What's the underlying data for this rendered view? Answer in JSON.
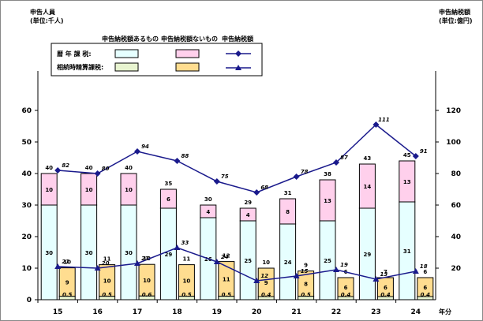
{
  "chart_data": {
    "type": "bar",
    "left_axis_label_line1": "申告人員",
    "left_axis_label_line2": "(単位:千人)",
    "right_axis_label_line1": "申告納税額",
    "right_axis_label_line2": "(単位:億円)",
    "x_unit_label": "年分",
    "categories": [
      "15",
      "16",
      "17",
      "18",
      "19",
      "20",
      "21",
      "22",
      "23",
      "24"
    ],
    "left_ylim": [
      0,
      70
    ],
    "left_ticks": [
      "0",
      "10",
      "20",
      "30",
      "40",
      "50",
      "60"
    ],
    "right_ylim": [
      0,
      140
    ],
    "right_ticks": [
      "20",
      "40",
      "60",
      "80",
      "100",
      "120"
    ],
    "legend": {
      "col1": "申告納税額あるもの",
      "col2": "申告納税額ないもの",
      "col3": "申告納税額",
      "row1": "暦 年 課 税:",
      "row2": "相続時精算課税:"
    },
    "rekinen": {
      "with_tax": [
        30,
        30,
        30,
        29,
        26,
        25,
        24,
        25,
        29,
        31
      ],
      "without_tax": [
        10,
        10,
        10,
        6,
        4,
        4,
        8,
        13,
        14,
        13
      ],
      "total": [
        40,
        40,
        40,
        35,
        30,
        29,
        31,
        38,
        43,
        45
      ],
      "tax_amount": [
        82,
        80,
        94,
        88,
        75,
        68,
        78,
        87,
        111,
        91
      ]
    },
    "souzokuji": {
      "with_tax": [
        0.5,
        0.5,
        0.6,
        0.5,
        0.5,
        0.4,
        0.5,
        0.4,
        0.4,
        0.4
      ],
      "without_tax": [
        9,
        10,
        10,
        10,
        11,
        9,
        8,
        6,
        6,
        6
      ],
      "total": [
        10,
        11,
        10,
        11,
        12,
        10,
        9,
        6,
        7,
        6
      ],
      "tax_amount": [
        21,
        20,
        23,
        33,
        24,
        12,
        15,
        19,
        13,
        18
      ]
    },
    "colors": {
      "rekinen_with": "#e6ffff",
      "rekinen_without": "#ffd0ec",
      "souzoku_without": "#ffdd90",
      "souzoku_with": "#e8f4d0",
      "line": "#1a1a8c"
    }
  }
}
